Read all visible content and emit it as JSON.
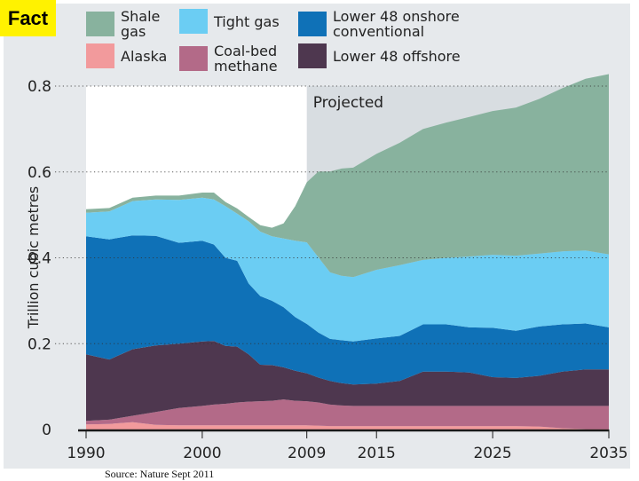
{
  "badge": {
    "label": "Fact"
  },
  "source": "Source: Nature Sept 2011",
  "legend": [
    {
      "name": "Shale gas",
      "label": "Shale\ngas",
      "color": "#88b29e"
    },
    {
      "name": "Tight gas",
      "label": "Tight gas",
      "color": "#6bcdf3"
    },
    {
      "name": "Lower 48 onshore conventional",
      "label": "Lower 48 onshore\nconventional",
      "color": "#0f71b7"
    },
    {
      "name": "Alaska",
      "label": "Alaska",
      "color": "#f29a9c"
    },
    {
      "name": "Coal-bed methane",
      "label": "Coal-bed\nmethane",
      "color": "#b36a88"
    },
    {
      "name": "Lower 48 offshore",
      "label": "Lower 48 offshore",
      "color": "#4e374f"
    }
  ],
  "chart_data": {
    "type": "area",
    "stacked": true,
    "title": "",
    "xlabel": "",
    "ylabel": "Trillion cubic metres",
    "xlim": [
      1990,
      2035
    ],
    "ylim": [
      0,
      0.8
    ],
    "x_ticks": [
      1990,
      2000,
      2009,
      2015,
      2025,
      2035
    ],
    "y_ticks": [
      0,
      0.2,
      0.4,
      0.6,
      0.8
    ],
    "y_tick_labels": [
      "0",
      "0.2",
      "0.4",
      "0.6",
      "0.8"
    ],
    "grid": "horizontal dotted",
    "annotation": {
      "text": "Projected",
      "from_x": 2009,
      "to_x": 2035
    },
    "x": [
      1990,
      1992,
      1994,
      1996,
      1998,
      2000,
      2001,
      2002,
      2003,
      2004,
      2005,
      2006,
      2007,
      2008,
      2009,
      2010,
      2011,
      2012,
      2013,
      2015,
      2017,
      2019,
      2021,
      2023,
      2025,
      2027,
      2029,
      2031,
      2033,
      2035
    ],
    "series": [
      {
        "name": "Alaska",
        "color": "#f29a9c",
        "values": [
          0.012,
          0.013,
          0.017,
          0.011,
          0.01,
          0.01,
          0.01,
          0.01,
          0.01,
          0.01,
          0.01,
          0.01,
          0.01,
          0.01,
          0.01,
          0.009,
          0.008,
          0.008,
          0.008,
          0.008,
          0.008,
          0.008,
          0.008,
          0.008,
          0.008,
          0.008,
          0.007,
          0.003,
          0.001,
          0.001
        ]
      },
      {
        "name": "Coal-bed methane",
        "color": "#b36a88",
        "values": [
          0.008,
          0.01,
          0.015,
          0.03,
          0.04,
          0.045,
          0.048,
          0.05,
          0.053,
          0.055,
          0.056,
          0.057,
          0.06,
          0.057,
          0.056,
          0.054,
          0.05,
          0.048,
          0.047,
          0.047,
          0.047,
          0.047,
          0.047,
          0.047,
          0.047,
          0.047,
          0.048,
          0.052,
          0.054,
          0.054
        ]
      },
      {
        "name": "Lower 48 offshore",
        "color": "#4e374f",
        "values": [
          0.155,
          0.14,
          0.155,
          0.155,
          0.15,
          0.15,
          0.148,
          0.135,
          0.13,
          0.11,
          0.085,
          0.083,
          0.075,
          0.07,
          0.065,
          0.058,
          0.055,
          0.052,
          0.05,
          0.052,
          0.058,
          0.08,
          0.08,
          0.078,
          0.067,
          0.065,
          0.07,
          0.08,
          0.085,
          0.085
        ]
      },
      {
        "name": "Lower 48 onshore conventional",
        "color": "#0f71b7",
        "values": [
          0.275,
          0.28,
          0.265,
          0.255,
          0.235,
          0.235,
          0.225,
          0.205,
          0.2,
          0.165,
          0.16,
          0.15,
          0.14,
          0.125,
          0.115,
          0.105,
          0.098,
          0.1,
          0.1,
          0.105,
          0.105,
          0.11,
          0.11,
          0.105,
          0.115,
          0.11,
          0.115,
          0.11,
          0.107,
          0.098
        ]
      },
      {
        "name": "Tight gas",
        "color": "#6bcdf3",
        "values": [
          0.055,
          0.065,
          0.08,
          0.085,
          0.1,
          0.1,
          0.105,
          0.12,
          0.11,
          0.145,
          0.15,
          0.15,
          0.16,
          0.178,
          0.19,
          0.175,
          0.155,
          0.15,
          0.15,
          0.16,
          0.165,
          0.15,
          0.155,
          0.165,
          0.17,
          0.175,
          0.17,
          0.17,
          0.17,
          0.17
        ]
      },
      {
        "name": "Shale gas",
        "color": "#88b29e",
        "values": [
          0.008,
          0.008,
          0.008,
          0.009,
          0.01,
          0.012,
          0.016,
          0.01,
          0.012,
          0.01,
          0.015,
          0.02,
          0.035,
          0.08,
          0.14,
          0.2,
          0.235,
          0.25,
          0.255,
          0.27,
          0.285,
          0.305,
          0.315,
          0.325,
          0.335,
          0.345,
          0.36,
          0.38,
          0.4,
          0.42
        ]
      }
    ]
  }
}
